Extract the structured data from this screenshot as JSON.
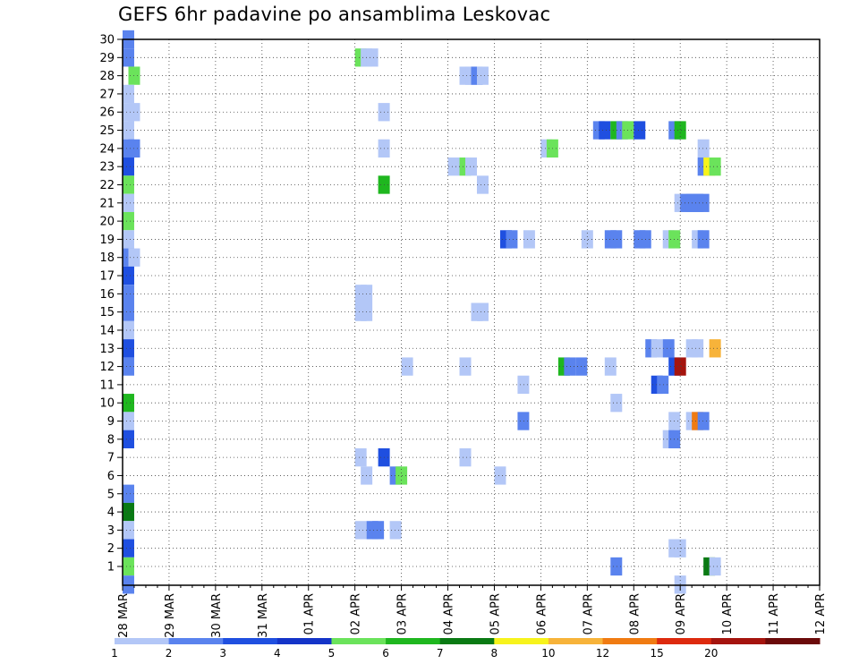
{
  "chart_data": {
    "type": "heatmap",
    "title": "GEFS 6hr padavine po ansamblima Leskovac",
    "xlabel": "",
    "ylabel": "",
    "x_ticks": [
      "28 MAR",
      "29 MAR",
      "30 MAR",
      "31 MAR",
      "01 APR",
      "02 APR",
      "03 APR",
      "04 APR",
      "05 APR",
      "06 APR",
      "07 APR",
      "08 APR",
      "09 APR",
      "10 APR",
      "11 APR",
      "12 APR"
    ],
    "y_ticks": [
      1,
      2,
      3,
      4,
      5,
      6,
      7,
      8,
      9,
      10,
      11,
      12,
      13,
      14,
      15,
      16,
      17,
      18,
      19,
      20,
      21,
      22,
      23,
      24,
      25,
      26,
      27,
      28,
      29,
      30
    ],
    "x_unit_note": "columns are 6-hour steps from 28 MAR (4 steps per day)",
    "ylim": [
      0.5,
      30.5
    ],
    "grid": true,
    "legend": {
      "position": "bottom",
      "labels": [
        "1",
        "2",
        "3",
        "4",
        "5",
        "6",
        "7",
        "8",
        "10",
        "12",
        "15",
        "20"
      ],
      "colors": [
        "#b3c7f7",
        "#5a83ee",
        "#1f4fe0",
        "#1434c8",
        "#6be35b",
        "#1fb71f",
        "#0a7a14",
        "#f7f31c",
        "#f7b33a",
        "#f07b12",
        "#dd2a0e",
        "#a5140e",
        "#6b0a0a"
      ]
    },
    "cells": [
      {
        "x": 0.5,
        "y": 30,
        "v": 2
      },
      {
        "x": 0.5,
        "y": 29,
        "v": 2
      },
      {
        "x": 1,
        "y": 28,
        "v": 5
      },
      {
        "x": 0.5,
        "y": 27,
        "v": 1
      },
      {
        "x": 0.5,
        "y": 26,
        "v": 1
      },
      {
        "x": 1,
        "y": 26,
        "v": 1
      },
      {
        "x": 0.5,
        "y": 25,
        "v": 1
      },
      {
        "x": 0.5,
        "y": 24,
        "v": 2
      },
      {
        "x": 1,
        "y": 24,
        "v": 2
      },
      {
        "x": 0.5,
        "y": 23,
        "v": 3
      },
      {
        "x": 0.5,
        "y": 22,
        "v": 5
      },
      {
        "x": 0.5,
        "y": 21,
        "v": 1
      },
      {
        "x": 0.5,
        "y": 20,
        "v": 5
      },
      {
        "x": 0.5,
        "y": 19,
        "v": 1
      },
      {
        "x": 0.5,
        "y": 18,
        "v": 2
      },
      {
        "x": 1,
        "y": 18,
        "v": 1
      },
      {
        "x": 0.5,
        "y": 17,
        "v": 3
      },
      {
        "x": 0.5,
        "y": 16,
        "v": 2
      },
      {
        "x": 0.5,
        "y": 15,
        "v": 2
      },
      {
        "x": 0.5,
        "y": 14,
        "v": 1
      },
      {
        "x": 0.5,
        "y": 13,
        "v": 3
      },
      {
        "x": 0.5,
        "y": 12,
        "v": 2
      },
      {
        "x": 0.5,
        "y": 10,
        "v": 6
      },
      {
        "x": 0.5,
        "y": 9,
        "v": 1
      },
      {
        "x": 0.5,
        "y": 8,
        "v": 3
      },
      {
        "x": 0.5,
        "y": 5,
        "v": 2
      },
      {
        "x": 0.5,
        "y": 4,
        "v": 7
      },
      {
        "x": 0.5,
        "y": 3,
        "v": 1
      },
      {
        "x": 0.5,
        "y": 2,
        "v": 3
      },
      {
        "x": 0.5,
        "y": 1,
        "v": 5
      },
      {
        "x": 0.5,
        "y": 0,
        "v": 2
      },
      {
        "x": 20.5,
        "y": 29,
        "v": 5
      },
      {
        "x": 21,
        "y": 29,
        "v": 1
      },
      {
        "x": 21.5,
        "y": 29,
        "v": 1
      },
      {
        "x": 22.5,
        "y": 26,
        "v": 1
      },
      {
        "x": 22.5,
        "y": 24,
        "v": 1
      },
      {
        "x": 22.5,
        "y": 22,
        "v": 6
      },
      {
        "x": 20.5,
        "y": 16,
        "v": 1
      },
      {
        "x": 21,
        "y": 16,
        "v": 1
      },
      {
        "x": 20.5,
        "y": 15,
        "v": 1
      },
      {
        "x": 21,
        "y": 15,
        "v": 1
      },
      {
        "x": 24.5,
        "y": 12,
        "v": 1
      },
      {
        "x": 20.5,
        "y": 7,
        "v": 1
      },
      {
        "x": 22.5,
        "y": 7,
        "v": 3
      },
      {
        "x": 21,
        "y": 6,
        "v": 1
      },
      {
        "x": 23.5,
        "y": 6,
        "v": 2
      },
      {
        "x": 24,
        "y": 6,
        "v": 5
      },
      {
        "x": 20.5,
        "y": 3,
        "v": 1
      },
      {
        "x": 21.5,
        "y": 3,
        "v": 2
      },
      {
        "x": 22,
        "y": 3,
        "v": 2
      },
      {
        "x": 23.5,
        "y": 3,
        "v": 1
      },
      {
        "x": 29.5,
        "y": 28,
        "v": 1
      },
      {
        "x": 30,
        "y": 28,
        "v": 1
      },
      {
        "x": 30.5,
        "y": 28,
        "v": 2
      },
      {
        "x": 31,
        "y": 28,
        "v": 1
      },
      {
        "x": 28.5,
        "y": 23,
        "v": 1
      },
      {
        "x": 29.5,
        "y": 23,
        "v": 5
      },
      {
        "x": 30,
        "y": 23,
        "v": 1
      },
      {
        "x": 31,
        "y": 22,
        "v": 1
      },
      {
        "x": 33,
        "y": 19,
        "v": 3
      },
      {
        "x": 33.5,
        "y": 19,
        "v": 2
      },
      {
        "x": 35,
        "y": 19,
        "v": 1
      },
      {
        "x": 30.5,
        "y": 15,
        "v": 1
      },
      {
        "x": 31,
        "y": 15,
        "v": 1
      },
      {
        "x": 29.5,
        "y": 12,
        "v": 1
      },
      {
        "x": 34.5,
        "y": 11,
        "v": 1
      },
      {
        "x": 34.5,
        "y": 9,
        "v": 2
      },
      {
        "x": 29.5,
        "y": 7,
        "v": 1
      },
      {
        "x": 32.5,
        "y": 6,
        "v": 1
      },
      {
        "x": 36.5,
        "y": 24,
        "v": 1
      },
      {
        "x": 37,
        "y": 24,
        "v": 5
      },
      {
        "x": 38,
        "y": 12,
        "v": 6
      },
      {
        "x": 38.5,
        "y": 12,
        "v": 2
      },
      {
        "x": 39.5,
        "y": 12,
        "v": 2
      },
      {
        "x": 40,
        "y": 19,
        "v": 1
      },
      {
        "x": 42,
        "y": 12,
        "v": 1
      },
      {
        "x": 42.5,
        "y": 10,
        "v": 1
      },
      {
        "x": 42.5,
        "y": 1,
        "v": 2
      },
      {
        "x": 41,
        "y": 25,
        "v": 2
      },
      {
        "x": 41.5,
        "y": 25,
        "v": 3
      },
      {
        "x": 42.5,
        "y": 25,
        "v": 6
      },
      {
        "x": 43,
        "y": 25,
        "v": 2
      },
      {
        "x": 43.5,
        "y": 25,
        "v": 5
      },
      {
        "x": 44.5,
        "y": 25,
        "v": 3
      },
      {
        "x": 42,
        "y": 19,
        "v": 2
      },
      {
        "x": 42.5,
        "y": 19,
        "v": 2
      },
      {
        "x": 44.5,
        "y": 19,
        "v": 2
      },
      {
        "x": 45,
        "y": 19,
        "v": 2
      },
      {
        "x": 45.5,
        "y": 13,
        "v": 2
      },
      {
        "x": 46,
        "y": 13,
        "v": 1
      },
      {
        "x": 47,
        "y": 13,
        "v": 2
      },
      {
        "x": 46,
        "y": 11,
        "v": 3
      },
      {
        "x": 46.5,
        "y": 11,
        "v": 2
      },
      {
        "x": 47.5,
        "y": 25,
        "v": 2
      },
      {
        "x": 48,
        "y": 25,
        "v": 6
      },
      {
        "x": 47,
        "y": 19,
        "v": 1
      },
      {
        "x": 47.5,
        "y": 19,
        "v": 5
      },
      {
        "x": 48,
        "y": 21,
        "v": 1
      },
      {
        "x": 48.5,
        "y": 21,
        "v": 2
      },
      {
        "x": 49,
        "y": 21,
        "v": 2
      },
      {
        "x": 49.5,
        "y": 21,
        "v": 2
      },
      {
        "x": 50,
        "y": 21,
        "v": 2
      },
      {
        "x": 50,
        "y": 24,
        "v": 1
      },
      {
        "x": 50,
        "y": 23,
        "v": 2
      },
      {
        "x": 50.5,
        "y": 23,
        "v": 8
      },
      {
        "x": 51,
        "y": 23,
        "v": 5
      },
      {
        "x": 49,
        "y": 13,
        "v": 1
      },
      {
        "x": 49.5,
        "y": 13,
        "v": 1
      },
      {
        "x": 51,
        "y": 13,
        "v": 9
      },
      {
        "x": 47.5,
        "y": 12,
        "v": 3
      },
      {
        "x": 48,
        "y": 12,
        "v": 12
      },
      {
        "x": 47.5,
        "y": 9,
        "v": 1
      },
      {
        "x": 49,
        "y": 9,
        "v": 1
      },
      {
        "x": 49.5,
        "y": 9,
        "v": 10
      },
      {
        "x": 50,
        "y": 9,
        "v": 2
      },
      {
        "x": 47,
        "y": 8,
        "v": 1
      },
      {
        "x": 47.5,
        "y": 8,
        "v": 2
      },
      {
        "x": 47.5,
        "y": 2,
        "v": 1
      },
      {
        "x": 48,
        "y": 2,
        "v": 1
      },
      {
        "x": 50.5,
        "y": 1,
        "v": 7
      },
      {
        "x": 51,
        "y": 1,
        "v": 1
      },
      {
        "x": 48,
        "y": 0,
        "v": 1
      },
      {
        "x": 49.5,
        "y": 19,
        "v": 1
      },
      {
        "x": 50,
        "y": 19,
        "v": 2
      }
    ]
  }
}
